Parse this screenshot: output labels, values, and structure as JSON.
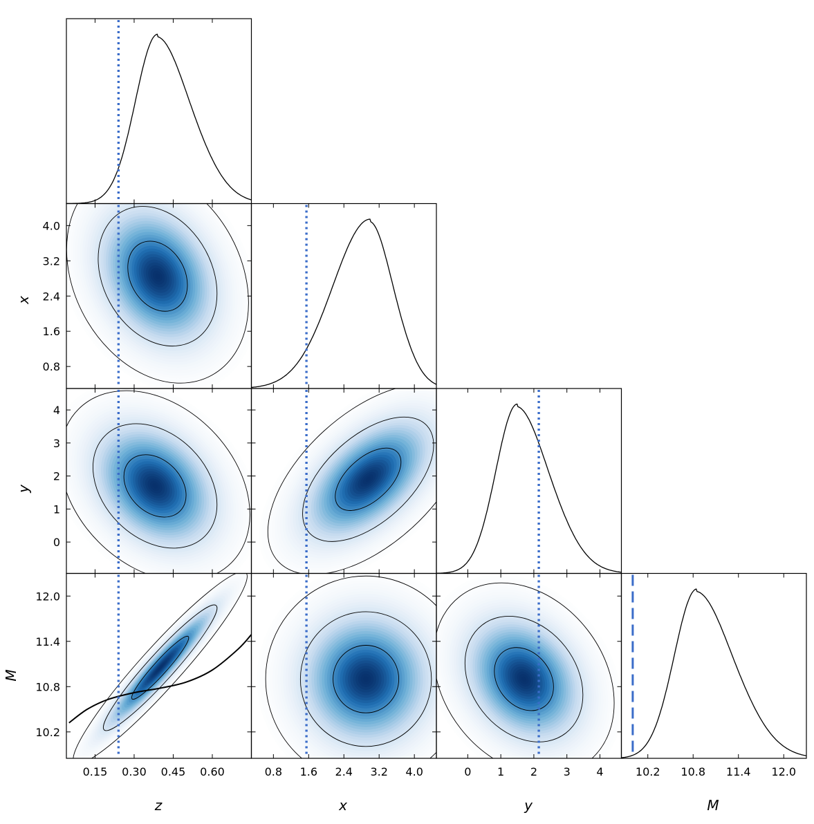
{
  "chart_data": {
    "type": "corner",
    "parameters": [
      "z",
      "x",
      "y",
      "M"
    ],
    "axis_labels": [
      "z",
      "x",
      "y",
      "M"
    ],
    "ranges": {
      "z": [
        0.04,
        0.75
      ],
      "x": [
        0.3,
        4.5
      ],
      "y": [
        -0.95,
        4.65
      ],
      "M": [
        9.85,
        12.3
      ]
    },
    "ticks": {
      "z": [
        0.15,
        0.3,
        0.45,
        0.6
      ],
      "x": [
        0.8,
        1.6,
        2.4,
        3.2,
        4.0
      ],
      "y": [
        0,
        1,
        2,
        3,
        4
      ],
      "M": [
        10.2,
        10.8,
        11.4,
        12.0
      ]
    },
    "tick_labels": {
      "z": [
        "0.15",
        "0.30",
        "0.45",
        "0.60"
      ],
      "x": [
        "0.8",
        "1.6",
        "2.4",
        "3.2",
        "4.0"
      ],
      "y": [
        "0",
        "1",
        "2",
        "3",
        "4"
      ],
      "M": [
        "10.2",
        "10.8",
        "11.4",
        "12.0"
      ]
    },
    "marginals": [
      {
        "param": "z",
        "peak": 0.39,
        "sigma_left": 0.085,
        "sigma_right": 0.13
      },
      {
        "param": "x",
        "peak": 3.0,
        "sigma_left": 0.85,
        "sigma_right": 0.55
      },
      {
        "param": "y",
        "peak": 1.5,
        "sigma_left": 0.65,
        "sigma_right": 1.0
      },
      {
        "param": "M",
        "peak": 10.85,
        "sigma_left": 0.3,
        "sigma_right": 0.5
      }
    ],
    "joint_densities": [
      {
        "x_param": "z",
        "y_param": "x",
        "center": [
          0.39,
          2.85
        ],
        "std": [
          0.115,
          0.8
        ],
        "correlation": -0.25,
        "contour_levels": [
          0.39,
          0.86,
          0.99
        ]
      },
      {
        "x_param": "z",
        "y_param": "y",
        "center": [
          0.38,
          1.7
        ],
        "std": [
          0.12,
          0.95
        ],
        "correlation": -0.3,
        "contour_levels": [
          0.39,
          0.86,
          0.99
        ]
      },
      {
        "x_param": "x",
        "y_param": "y",
        "center": [
          2.95,
          1.9
        ],
        "std": [
          0.75,
          0.95
        ],
        "correlation": 0.55,
        "contour_levels": [
          0.39,
          0.86,
          0.99
        ]
      },
      {
        "x_param": "z",
        "y_param": "M",
        "center": [
          0.4,
          11.05
        ],
        "std": [
          0.11,
          0.42
        ],
        "correlation": 0.95,
        "contour_levels": [
          0.39,
          0.86,
          0.99
        ]
      },
      {
        "x_param": "x",
        "y_param": "M",
        "center": [
          2.9,
          10.9
        ],
        "std": [
          0.75,
          0.45
        ],
        "correlation": 0.0,
        "contour_levels": [
          0.39,
          0.86,
          0.99
        ]
      },
      {
        "x_param": "y",
        "y_param": "M",
        "center": [
          1.7,
          10.9
        ],
        "std": [
          0.9,
          0.42
        ],
        "correlation": -0.25,
        "contour_levels": [
          0.39,
          0.86,
          0.99
        ]
      }
    ],
    "reference_lines": [
      {
        "param": "z",
        "value": 0.24,
        "style": "dotted",
        "color": "#3a6cc9"
      },
      {
        "param": "x",
        "value": 1.55,
        "style": "dotted",
        "color": "#3a6cc9"
      },
      {
        "param": "y",
        "value": 2.15,
        "style": "dotted",
        "color": "#3a6cc9"
      },
      {
        "param": "M",
        "value": 10.0,
        "style": "dashed",
        "color": "#3a6cc9"
      }
    ],
    "relation_curve": {
      "x_param": "z",
      "y_param": "M",
      "points": [
        [
          0.05,
          10.32
        ],
        [
          0.12,
          10.5
        ],
        [
          0.2,
          10.63
        ],
        [
          0.3,
          10.72
        ],
        [
          0.4,
          10.78
        ],
        [
          0.5,
          10.86
        ],
        [
          0.6,
          11.02
        ],
        [
          0.7,
          11.3
        ],
        [
          0.75,
          11.49
        ]
      ]
    },
    "colors": {
      "density": "#08306b",
      "contour": "#000000",
      "reference": "#3a6cc9"
    },
    "grid": false
  }
}
